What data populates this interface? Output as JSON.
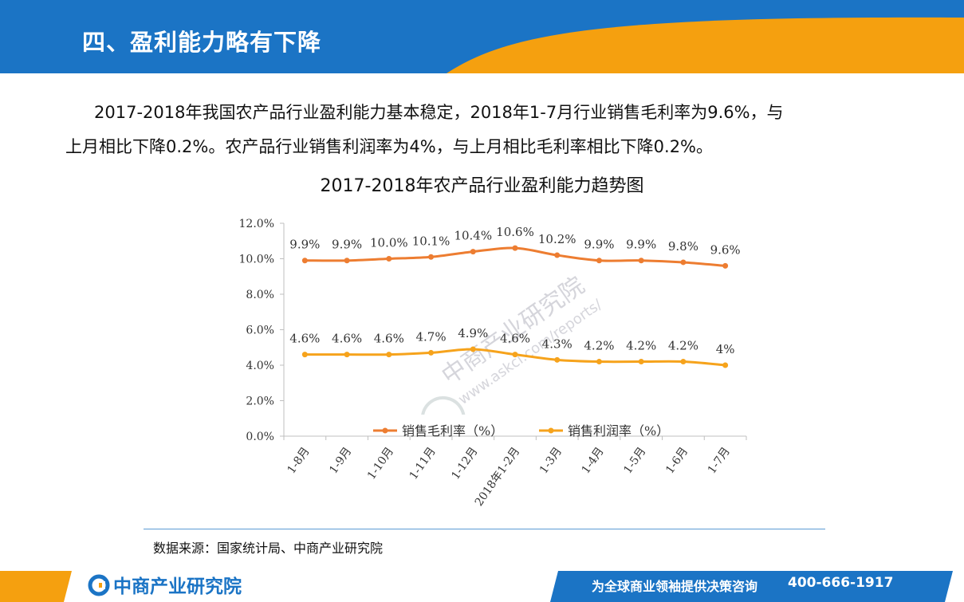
{
  "header": {
    "title": "四、盈利能力略有下降"
  },
  "intro": {
    "line1": "2017-2018年我国农产品行业盈利能力基本稳定，2018年1-7月行业销售毛利率为9.6%，与",
    "line2": "上月相比下降0.2%。农产品行业销售利润率为4%，与上月相比毛利率相比下降0.2%。"
  },
  "colors": {
    "blue": "#1b74c5",
    "orange": "#f5a00f",
    "gross": "#ed7d31",
    "profit": "#f6a31c"
  },
  "chart_data": {
    "type": "line",
    "title": "2017-2018年农产品行业盈利能力趋势图",
    "categories": [
      "1-8月",
      "1-9月",
      "1-10月",
      "1-11月",
      "1-12月",
      "2018年1-2月",
      "1-3月",
      "1-4月",
      "1-5月",
      "1-6月",
      "1-7月"
    ],
    "ylim": [
      0,
      12
    ],
    "yticks": [
      "0.0%",
      "2.0%",
      "4.0%",
      "6.0%",
      "8.0%",
      "10.0%",
      "12.0%"
    ],
    "grid": false,
    "legend_position": "bottom",
    "series": [
      {
        "name": "销售毛利率（%）",
        "color": "#ed7d31",
        "values": [
          9.9,
          9.9,
          10.0,
          10.1,
          10.4,
          10.6,
          10.2,
          9.9,
          9.9,
          9.8,
          9.6
        ],
        "labels": [
          "9.9%",
          "9.9%",
          "10.0%",
          "10.1%",
          "10.4%",
          "10.6%",
          "10.2%",
          "9.9%",
          "9.9%",
          "9.8%",
          "9.6%"
        ]
      },
      {
        "name": "销售利润率（%）",
        "color": "#f6a31c",
        "values": [
          4.6,
          4.6,
          4.6,
          4.7,
          4.9,
          4.6,
          4.3,
          4.2,
          4.2,
          4.2,
          4.0
        ],
        "labels": [
          "4.6%",
          "4.6%",
          "4.6%",
          "4.7%",
          "4.9%",
          "4.6%",
          "4.3%",
          "4.2%",
          "4.2%",
          "4.2%",
          "4%"
        ]
      }
    ]
  },
  "source": "数据来源：国家统计局、中商产业研究院",
  "footer": {
    "logo": "中商产业研究院",
    "slogan": "为全球商业领袖提供决策咨询",
    "phone": "400-666-1917"
  },
  "watermark": {
    "line1": "中商产业研究院",
    "line2": "www.askci.com/reports/"
  }
}
